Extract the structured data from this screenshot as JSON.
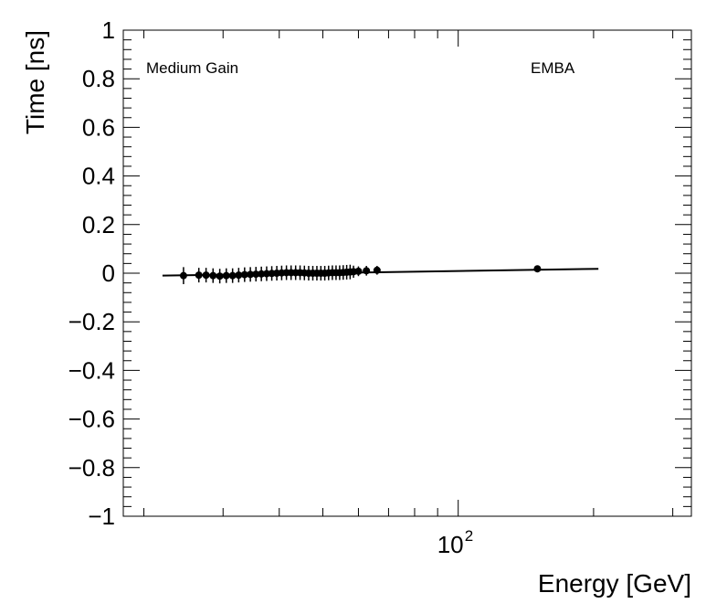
{
  "chart_data": {
    "type": "scatter",
    "xlabel": "Energy [GeV]",
    "ylabel": "Time [ns]",
    "x_scale": "log",
    "xlim": [
      18,
      330
    ],
    "ylim": [
      -1,
      1
    ],
    "x_tick_labels": [
      "10",
      "2"
    ],
    "y_ticks": [
      1,
      0.8,
      0.6,
      0.4,
      0.2,
      0,
      -0.2,
      -0.4,
      -0.6,
      -0.8,
      -1
    ],
    "y_tick_labels": [
      "1",
      "0.8",
      "0.6",
      "0.4",
      "0.2",
      "0",
      "−0.2",
      "−0.4",
      "−0.6",
      "−0.8",
      "−1"
    ],
    "annotations": {
      "left": "Medium Gain",
      "right": "EMBA"
    },
    "grid": false,
    "legend": "none",
    "points": [
      {
        "x": 24.5,
        "y": -0.01,
        "yerr": 0.035
      },
      {
        "x": 26.5,
        "y": -0.008,
        "yerr": 0.03
      },
      {
        "x": 27.5,
        "y": -0.008,
        "yerr": 0.03
      },
      {
        "x": 28.5,
        "y": -0.01,
        "yerr": 0.03
      },
      {
        "x": 29.5,
        "y": -0.012,
        "yerr": 0.03
      },
      {
        "x": 30.5,
        "y": -0.01,
        "yerr": 0.03
      },
      {
        "x": 31.5,
        "y": -0.01,
        "yerr": 0.03
      },
      {
        "x": 32.5,
        "y": -0.008,
        "yerr": 0.03
      },
      {
        "x": 33.5,
        "y": -0.006,
        "yerr": 0.03
      },
      {
        "x": 34.5,
        "y": -0.005,
        "yerr": 0.03
      },
      {
        "x": 35.5,
        "y": -0.004,
        "yerr": 0.03
      },
      {
        "x": 36.5,
        "y": -0.003,
        "yerr": 0.03
      },
      {
        "x": 37.5,
        "y": -0.002,
        "yerr": 0.03
      },
      {
        "x": 38.5,
        "y": -0.001,
        "yerr": 0.03
      },
      {
        "x": 39.5,
        "y": 0.0,
        "yerr": 0.03
      },
      {
        "x": 40.5,
        "y": 0.001,
        "yerr": 0.03
      },
      {
        "x": 41.5,
        "y": 0.002,
        "yerr": 0.03
      },
      {
        "x": 42.5,
        "y": 0.002,
        "yerr": 0.03
      },
      {
        "x": 43.5,
        "y": 0.002,
        "yerr": 0.03
      },
      {
        "x": 44.5,
        "y": 0.002,
        "yerr": 0.03
      },
      {
        "x": 45.5,
        "y": 0.001,
        "yerr": 0.03
      },
      {
        "x": 46.5,
        "y": 0.0,
        "yerr": 0.03
      },
      {
        "x": 47.5,
        "y": 0.0,
        "yerr": 0.03
      },
      {
        "x": 48.5,
        "y": 0.0,
        "yerr": 0.03
      },
      {
        "x": 49.5,
        "y": 0.0,
        "yerr": 0.03
      },
      {
        "x": 50.5,
        "y": 0.0,
        "yerr": 0.03
      },
      {
        "x": 51.5,
        "y": 0.001,
        "yerr": 0.03
      },
      {
        "x": 52.5,
        "y": 0.002,
        "yerr": 0.03
      },
      {
        "x": 53.5,
        "y": 0.002,
        "yerr": 0.03
      },
      {
        "x": 54.5,
        "y": 0.002,
        "yerr": 0.03
      },
      {
        "x": 55.5,
        "y": 0.003,
        "yerr": 0.03
      },
      {
        "x": 56.5,
        "y": 0.004,
        "yerr": 0.03
      },
      {
        "x": 57.5,
        "y": 0.005,
        "yerr": 0.03
      },
      {
        "x": 58.5,
        "y": 0.006,
        "yerr": 0.025
      },
      {
        "x": 60.0,
        "y": 0.008,
        "yerr": 0.02
      },
      {
        "x": 62.5,
        "y": 0.01,
        "yerr": 0.02
      },
      {
        "x": 66.0,
        "y": 0.012,
        "yerr": 0.018
      },
      {
        "x": 150.0,
        "y": 0.018,
        "yerr": 0.008
      }
    ],
    "fit_line": {
      "x": [
        22,
        205
      ],
      "y": [
        -0.01,
        0.018
      ]
    }
  }
}
